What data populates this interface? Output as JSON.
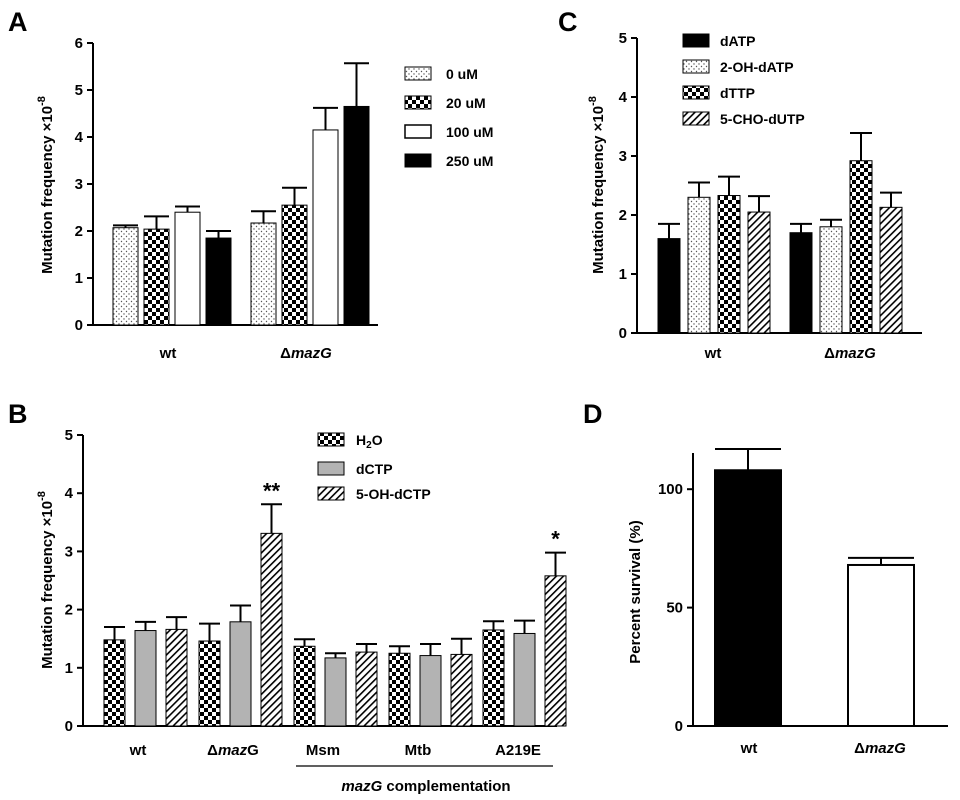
{
  "panels": [
    {
      "letter": "A",
      "ylabel": "Mutation frequency ×10",
      "ylabel_exp": "-8",
      "legend": [
        "0 uM",
        "20 uM",
        "100 uM",
        "250 uM"
      ]
    },
    {
      "letter": "B",
      "ylabel": "Mutation frequency ×10",
      "ylabel_exp": "-8",
      "legend": [
        "H",
        "2",
        "O",
        "dCTP",
        "5-OH-dCTP"
      ],
      "group_caption": [
        "mazG",
        " complementation"
      ]
    },
    {
      "letter": "C",
      "ylabel": "Mutation frequency ×10",
      "ylabel_exp": "-8",
      "legend": [
        "dATP",
        "2-OH-dATP",
        "dTTP",
        "5-CHO-dUTP"
      ]
    },
    {
      "letter": "D",
      "ylabel": "Percent survival  (%)"
    }
  ],
  "labels": {
    "delta": "Δ",
    "mazG": "mazG",
    "wt": "wt"
  },
  "chart_data": [
    {
      "panel": "A",
      "type": "bar",
      "categories": [
        "wt",
        "ΔmazG"
      ],
      "ylim": [
        0,
        6
      ],
      "yticks": [
        0,
        1,
        2,
        3,
        4,
        5,
        6
      ],
      "legend_position": "top-right",
      "series": [
        {
          "name": "0 uM",
          "pattern": "dots",
          "values": [
            2.07,
            2.17
          ],
          "errors": [
            0.05,
            0.25
          ]
        },
        {
          "name": "20 uM",
          "pattern": "checker",
          "values": [
            2.04,
            2.55
          ],
          "errors": [
            0.27,
            0.37
          ]
        },
        {
          "name": "100 uM",
          "pattern": "white",
          "values": [
            2.4,
            4.15
          ],
          "errors": [
            0.12,
            0.47
          ]
        },
        {
          "name": "250 uM",
          "pattern": "black",
          "values": [
            1.85,
            4.65
          ],
          "errors": [
            0.15,
            0.92
          ]
        }
      ]
    },
    {
      "panel": "B",
      "type": "bar",
      "categories": [
        "wt",
        "ΔmazG",
        "Msm",
        "Mtb",
        "A219E"
      ],
      "ylim": [
        0,
        5
      ],
      "yticks": [
        0,
        1,
        2,
        3,
        4,
        5
      ],
      "legend_position": "top-right",
      "series": [
        {
          "name": "H2O",
          "pattern": "checker",
          "values": [
            1.48,
            1.46,
            1.37,
            1.25,
            1.65
          ],
          "errors": [
            0.22,
            0.3,
            0.12,
            0.12,
            0.15
          ]
        },
        {
          "name": "dCTP",
          "pattern": "gray",
          "values": [
            1.64,
            1.79,
            1.17,
            1.21,
            1.59
          ],
          "errors": [
            0.15,
            0.28,
            0.08,
            0.2,
            0.22
          ]
        },
        {
          "name": "5-OH-dCTP",
          "pattern": "diag",
          "values": [
            1.66,
            3.31,
            1.27,
            1.23,
            2.58
          ],
          "errors": [
            0.21,
            0.5,
            0.14,
            0.27,
            0.4
          ]
        }
      ],
      "annotations": [
        {
          "category": "ΔmazG",
          "series": "5-OH-dCTP",
          "text": "**"
        },
        {
          "category": "A219E",
          "series": "5-OH-dCTP",
          "text": "*"
        }
      ]
    },
    {
      "panel": "C",
      "type": "bar",
      "categories": [
        "wt",
        "ΔmazG"
      ],
      "ylim": [
        0,
        5
      ],
      "yticks": [
        0,
        1,
        2,
        3,
        4,
        5
      ],
      "legend_position": "top-left",
      "series": [
        {
          "name": "dATP",
          "pattern": "black",
          "values": [
            1.6,
            1.7
          ],
          "errors": [
            0.25,
            0.15
          ]
        },
        {
          "name": "2-OH-dATP",
          "pattern": "dots",
          "values": [
            2.3,
            1.8
          ],
          "errors": [
            0.25,
            0.12
          ]
        },
        {
          "name": "dTTP",
          "pattern": "checker",
          "values": [
            2.33,
            2.92
          ],
          "errors": [
            0.32,
            0.47
          ]
        },
        {
          "name": "5-CHO-dUTP",
          "pattern": "diag",
          "values": [
            2.05,
            2.13
          ],
          "errors": [
            0.27,
            0.25
          ]
        }
      ]
    },
    {
      "panel": "D",
      "type": "bar",
      "categories": [
        "wt",
        "ΔmazG"
      ],
      "ylim": [
        0,
        125
      ],
      "yticks": [
        0,
        50,
        100
      ],
      "series": [
        {
          "name": "Percent survival",
          "values": [
            108,
            68
          ],
          "errors": [
            9,
            3
          ],
          "patterns": [
            "black",
            "white"
          ]
        }
      ]
    }
  ]
}
